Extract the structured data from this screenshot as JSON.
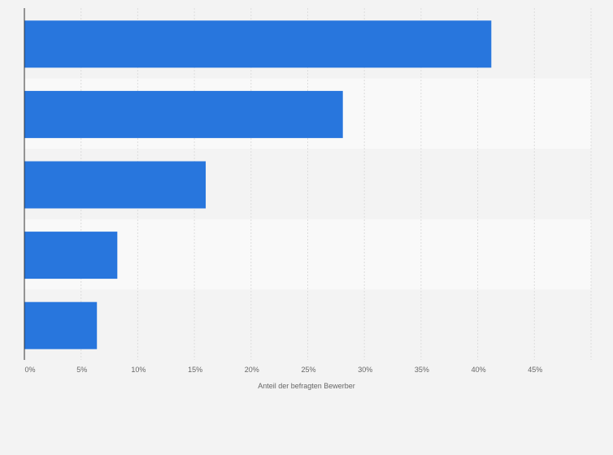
{
  "chart_data": {
    "type": "bar",
    "orientation": "horizontal",
    "categories": [
      "",
      "",
      "",
      "",
      ""
    ],
    "values": [
      41.2,
      28.1,
      16.0,
      8.2,
      6.4
    ],
    "unit": "%",
    "title": "",
    "xlabel": "Anteil der befragten Bewerber",
    "ylabel": "",
    "xlim": [
      0,
      50
    ],
    "xticks": [
      0,
      5,
      10,
      15,
      20,
      25,
      30,
      35,
      40,
      45
    ],
    "tick_labels": [
      "0%",
      "5%",
      "10%",
      "15%",
      "20%",
      "25%",
      "30%",
      "35%",
      "40%",
      "45%"
    ],
    "grid": true,
    "legend": "none",
    "colors": {
      "bar": "#2876dd",
      "band_light": "#f9f9f9",
      "band_dark": "#f3f3f3",
      "grid": "#dddddd",
      "axis": "#333333",
      "text": "#666666"
    }
  }
}
